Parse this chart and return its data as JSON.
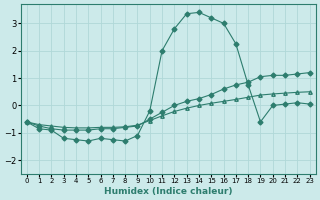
{
  "title": "",
  "xlabel": "Humidex (Indice chaleur)",
  "background_color": "#cceaea",
  "grid_color": "#b0d8d8",
  "line_color": "#2d7d6e",
  "x_values": [
    0,
    1,
    2,
    3,
    4,
    5,
    6,
    7,
    8,
    9,
    10,
    11,
    12,
    13,
    14,
    15,
    16,
    17,
    18,
    19,
    20,
    21,
    22,
    23
  ],
  "series1": [
    -0.6,
    -0.85,
    -0.9,
    -1.2,
    -1.25,
    -1.3,
    -1.2,
    -1.25,
    -1.3,
    -1.1,
    -0.2,
    2.0,
    2.8,
    3.35,
    3.4,
    3.2,
    3.0,
    2.25,
    0.75,
    -0.6,
    0.0,
    0.05,
    0.1,
    0.05
  ],
  "series2": [
    -0.6,
    -0.75,
    -0.85,
    -0.9,
    -0.9,
    -0.9,
    -0.85,
    -0.85,
    -0.8,
    -0.75,
    -0.5,
    -0.25,
    0.0,
    0.15,
    0.25,
    0.4,
    0.6,
    0.75,
    0.85,
    1.05,
    1.1,
    1.1,
    1.15,
    1.2
  ],
  "series3": [
    -0.6,
    -0.7,
    -0.75,
    -0.8,
    -0.82,
    -0.82,
    -0.8,
    -0.8,
    -0.78,
    -0.72,
    -0.55,
    -0.38,
    -0.22,
    -0.1,
    0.0,
    0.08,
    0.15,
    0.22,
    0.3,
    0.38,
    0.42,
    0.45,
    0.48,
    0.5
  ],
  "ylim": [
    -2.5,
    3.7
  ],
  "xlim": [
    -0.5,
    23.5
  ],
  "yticks": [
    -2,
    -1,
    0,
    1,
    2,
    3
  ],
  "xticks": [
    0,
    1,
    2,
    3,
    4,
    5,
    6,
    7,
    8,
    9,
    10,
    11,
    12,
    13,
    14,
    15,
    16,
    17,
    18,
    19,
    20,
    21,
    22,
    23
  ],
  "figsize": [
    3.2,
    2.0
  ],
  "dpi": 100
}
